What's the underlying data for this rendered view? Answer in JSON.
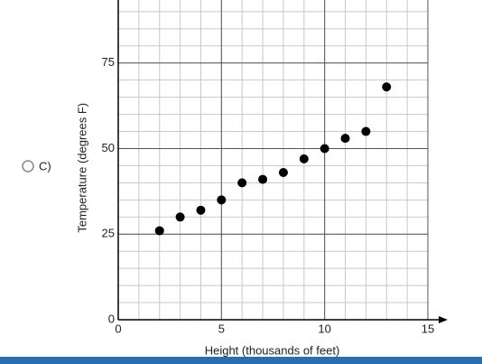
{
  "option_label": "C)",
  "chart_data": {
    "type": "scatter",
    "x_label": "Height (thousands of feet)",
    "y_label": "Temperature (degrees F)",
    "x": [
      2,
      3,
      4,
      5,
      6,
      7,
      8,
      9,
      10,
      11,
      12,
      13
    ],
    "values": [
      26,
      30,
      32,
      35,
      40,
      41,
      43,
      47,
      50,
      53,
      55,
      68
    ],
    "color": "#000000",
    "xlim": [
      0,
      15
    ],
    "ylim": [
      0,
      93
    ],
    "xticks": [
      0,
      5,
      10,
      15
    ],
    "yticks": [
      0,
      25,
      50,
      75
    ],
    "grid": true,
    "minor_grid": {
      "x": 1,
      "y": 5
    }
  }
}
